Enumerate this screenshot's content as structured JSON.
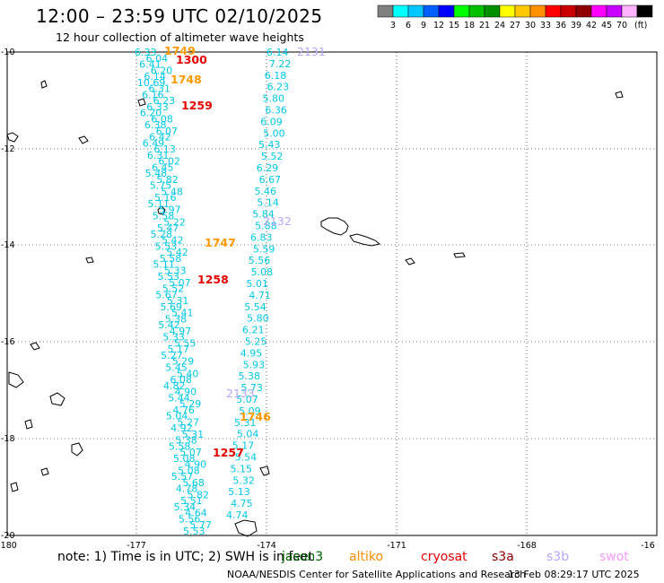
{
  "header": {
    "title": "12:00 – 23:59 UTC 02/10/2025",
    "subtitle": "12 hour collection of altimeter wave heights"
  },
  "colorbar": {
    "labels": [
      "3",
      "6",
      "9",
      "12",
      "15",
      "18",
      "21",
      "24",
      "27",
      "30",
      "33",
      "36",
      "39",
      "42",
      "45",
      "70"
    ],
    "unit": "(ft)",
    "colors": [
      "#808080",
      "#00ffff",
      "#00c8ff",
      "#0060ff",
      "#0000ff",
      "#00ff00",
      "#00c000",
      "#009000",
      "#ffff00",
      "#ffc800",
      "#ff9000",
      "#ff0000",
      "#c80000",
      "#900000",
      "#ff00ff",
      "#c800ff",
      "#ffb4ff",
      "#000000"
    ]
  },
  "map": {
    "lon_ticks": [
      "-180",
      "-177",
      "-174",
      "-171",
      "-168",
      "-16"
    ],
    "lat_ticks": [
      "-10",
      "-12",
      "-14",
      "-16",
      "-18",
      "-20"
    ],
    "colors": {
      "cyan": "#00c8e6",
      "orange": "#ff9900",
      "red": "#e60000",
      "lavender": "#b9a6ff",
      "grid": "#000000"
    },
    "left_track": {
      "values": [
        "6.33",
        "6.04",
        "6.41",
        "6.20",
        "6.14",
        "10.69",
        "6.31",
        "6.16",
        "6.23",
        "6.33",
        "6.20",
        "6.08",
        "6.38",
        "6.07",
        "6.42",
        "6.49",
        "6.13",
        "6.31",
        "6.02",
        "6.45",
        "5.48",
        "5.82",
        "5.75",
        "5.48",
        "5.16",
        "5.11",
        "5.97",
        "5.58",
        "5.22",
        "5.47",
        "5.28",
        "5.42",
        "5.53",
        "5.42",
        "5.58",
        "5.11",
        "5.33",
        "5.53",
        "5.07",
        "5.52",
        "5.67",
        "5.31",
        "5.69",
        "5.41",
        "5.38",
        "5.42",
        "4.97",
        "5.33",
        "5.55",
        "5.17",
        "5.27",
        "5.29",
        "5.45",
        "5.40",
        "6.08",
        "4.82",
        "4.90",
        "5.44",
        "5.29",
        "4.76",
        "5.04",
        "5.27",
        "4.92",
        "5.31",
        "5.38",
        "5.58",
        "5.07",
        "5.08",
        "4.90",
        "5.08",
        "5.57",
        "5.68",
        "4.78",
        "5.82",
        "5.51",
        "5.34",
        "4.64",
        "5.56",
        "5.77",
        "5.53"
      ],
      "labels": [
        {
          "text": "1749",
          "color": "orange"
        },
        {
          "text": "1300",
          "color": "red"
        },
        {
          "text": "1748",
          "color": "orange"
        },
        {
          "text": "1259",
          "color": "red"
        },
        {
          "text": "1747",
          "color": "orange"
        },
        {
          "text": "1258",
          "color": "red"
        },
        {
          "text": "1746",
          "color": "orange"
        },
        {
          "text": "1257",
          "color": "red"
        }
      ]
    },
    "right_track": {
      "values": [
        "6.14",
        "7.22",
        "6.18",
        "6.23",
        "5.80",
        "6.36",
        "6.09",
        "5.00",
        "5.43",
        "5.52",
        "6.29",
        "6.67",
        "5.46",
        "5.14",
        "5.84",
        "5.88",
        "6.83",
        "5.59",
        "5.56",
        "5.08",
        "5.01",
        "4.71",
        "5.54",
        "5.80",
        "6.21",
        "5.25",
        "4.95",
        "5.93",
        "5.38",
        "5.73",
        "5.07",
        "5.09",
        "5.31",
        "5.04",
        "5.17",
        "5.54",
        "5.15",
        "5.32",
        "5.13",
        "4.75",
        "4.74"
      ],
      "labels": [
        {
          "text": "2131",
          "color": "lavender"
        },
        {
          "text": "2132",
          "color": "lavender"
        },
        {
          "text": "2133",
          "color": "lavender"
        }
      ]
    }
  },
  "footer": {
    "note": "note: 1) Time is in UTC; 2) SWH is in feet",
    "satellites": [
      {
        "name": "jason3",
        "color": "#006400"
      },
      {
        "name": "altiko",
        "color": "#ff8c00"
      },
      {
        "name": "cryosat",
        "color": "#e60000"
      },
      {
        "name": "s3a",
        "color": "#8b0000"
      },
      {
        "name": "s3b",
        "color": "#b9a6ff"
      },
      {
        "name": "swot",
        "color": "#ff99ff"
      }
    ],
    "credit": "NOAA/NESDIS Center for Satellite Applications and Research",
    "timestamp": "13 Feb 08:29:17 UTC 2025"
  }
}
